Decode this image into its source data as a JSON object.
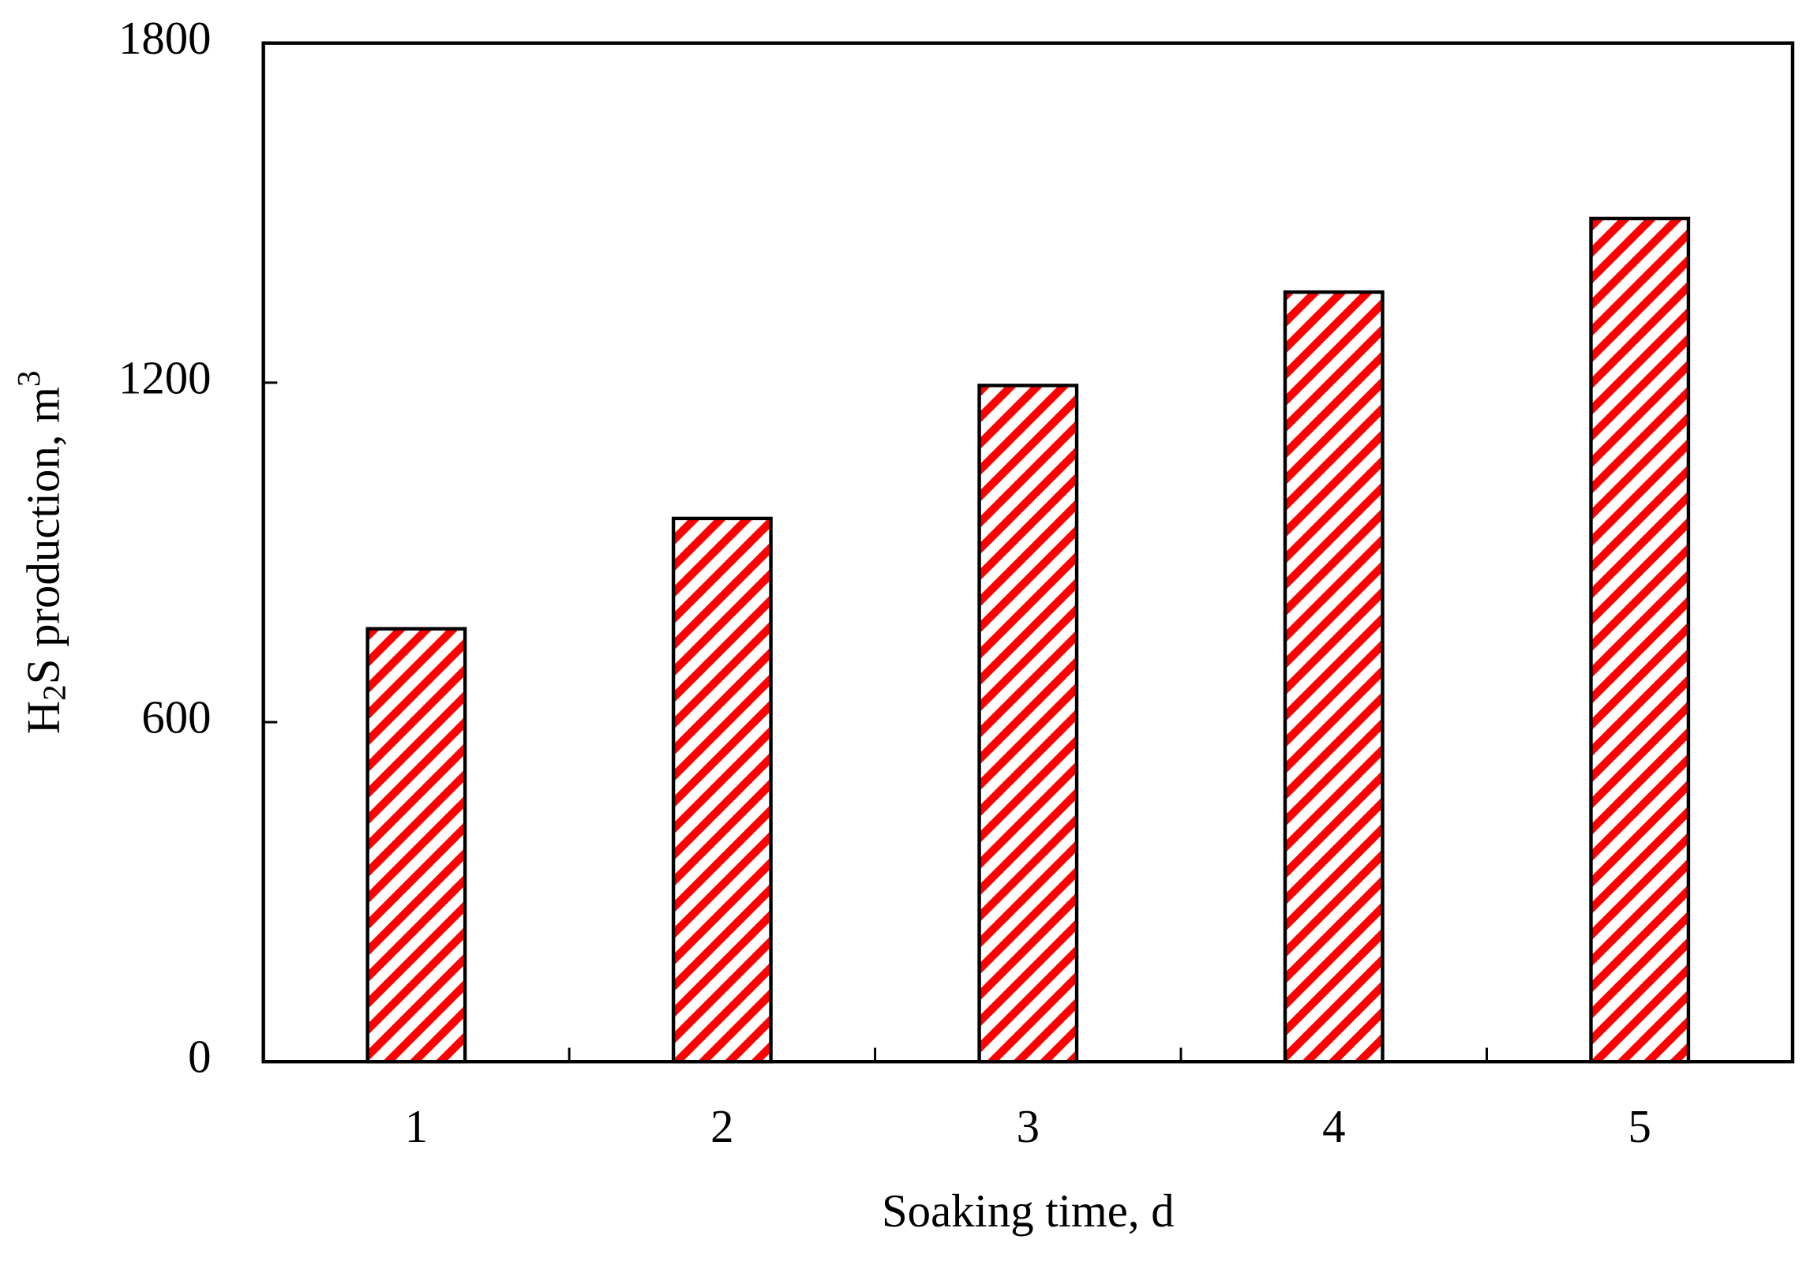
{
  "chart_data": {
    "type": "bar",
    "xlabel": "Soaking time, d",
    "ylabel": [
      "H",
      "2",
      "S production, m",
      "3"
    ],
    "categories": [
      "1",
      "2",
      "3",
      "4",
      "5"
    ],
    "values": [
      765,
      960,
      1195,
      1360,
      1490
    ],
    "color": "#ff0000",
    "ylim": [
      0,
      1800
    ],
    "yticks": [
      0,
      600,
      1200,
      1800
    ]
  }
}
